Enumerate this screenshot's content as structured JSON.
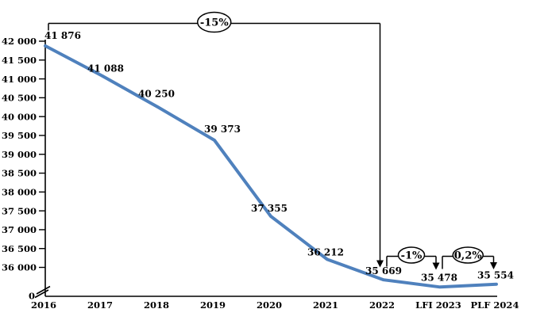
{
  "chart_data": {
    "type": "line",
    "title": "",
    "xlabel": "",
    "ylabel": "",
    "grid": false,
    "legend": false,
    "categories": [
      "2016",
      "2017",
      "2018",
      "2019",
      "2020",
      "2021",
      "2022",
      "LFI 2023",
      "PLF 2024"
    ],
    "values": [
      41876,
      41088,
      40250,
      39373,
      37355,
      36212,
      35669,
      35478,
      35554
    ],
    "point_labels": [
      "41 876",
      "41 088",
      "40 250",
      "39 373",
      "37 355",
      "36 212",
      "35 669",
      "35 478",
      "35 554"
    ],
    "y_axis": {
      "ylim": [
        0,
        42000
      ],
      "axis_break": true,
      "zero_label": "0",
      "tick_values": [
        42000,
        41500,
        41000,
        40500,
        40000,
        39500,
        39000,
        38500,
        38000,
        37500,
        37000,
        36500,
        36000
      ],
      "tick_labels": [
        "42 000",
        "41 500",
        "41 000",
        "40 500",
        "40 000",
        "39 500",
        "39 000",
        "38 500",
        "38 000",
        "37 500",
        "37 000",
        "36 500",
        "36 000"
      ]
    },
    "annotations": [
      {
        "label": "-15%",
        "from": "2016",
        "to": "2022"
      },
      {
        "label": "-1%",
        "from": "2022",
        "to": "LFI 2023"
      },
      {
        "label": "0,2%",
        "from": "LFI 2023",
        "to": "PLF 2024"
      }
    ],
    "colors": {
      "line": "#4F81BD",
      "axis": "#000000",
      "text": "#000000",
      "bubble_fill": "#FFFFFF",
      "bubble_stroke": "#000000"
    }
  }
}
